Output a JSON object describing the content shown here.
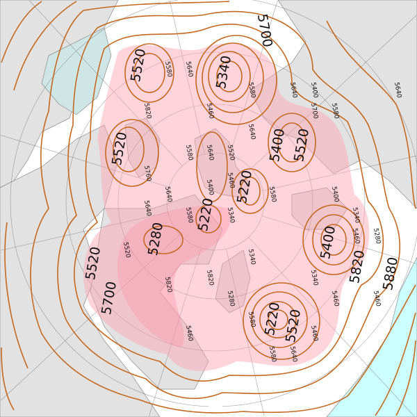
{
  "map": {
    "type": "polar stereographic geopotential height contour map",
    "colors": {
      "contour": "#c4681f",
      "low_fill": "#ff9fb0",
      "land": "#e2e2e2",
      "inland_sea": "#cfe6e6",
      "ocean_highlight": "#ccffff",
      "background": "#ffffff"
    },
    "major_labels": [
      "5520",
      "5340",
      "5700",
      "5520",
      "5400",
      "5520",
      "5220",
      "5220",
      "5280",
      "5700",
      "5520",
      "5400",
      "5220",
      "5520",
      "5880",
      "5820"
    ],
    "minor_labels": [
      "5580",
      "5640",
      "5460",
      "5580",
      "5640",
      "5400",
      "5580",
      "5640",
      "5700",
      "5820",
      "5760",
      "5640",
      "5580",
      "5640",
      "5520",
      "5580",
      "5640",
      "5460",
      "5580",
      "5340",
      "5400",
      "5460",
      "5280",
      "5340",
      "5340",
      "5460",
      "5460",
      "5520",
      "5580",
      "5580",
      "5640",
      "5460",
      "5280",
      "5340",
      "5400",
      "5460",
      "5640",
      "5820",
      "5820"
    ]
  }
}
